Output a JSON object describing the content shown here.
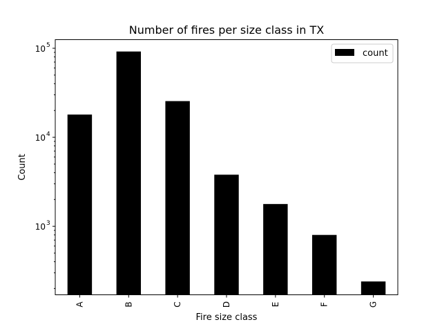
{
  "chart_data": {
    "type": "bar",
    "title": "Number of fires per size class in TX",
    "xlabel": "Fire size class",
    "ylabel": "Count",
    "yscale": "log",
    "categories": [
      "A",
      "B",
      "C",
      "D",
      "E",
      "F",
      "G"
    ],
    "series": [
      {
        "name": "count",
        "values": [
          18000,
          92000,
          25500,
          3800,
          1780,
          800,
          240
        ],
        "color": "#000000"
      }
    ],
    "ylim": [
      170,
      125000
    ],
    "yticks": [
      {
        "base": "10",
        "exp": "3",
        "value": 1000
      },
      {
        "base": "10",
        "exp": "4",
        "value": 10000
      },
      {
        "base": "10",
        "exp": "5",
        "value": 100000
      }
    ],
    "legend_position": "top-right",
    "grid": false
  }
}
